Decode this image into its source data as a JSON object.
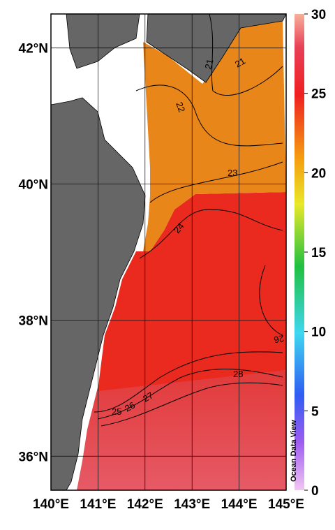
{
  "map": {
    "lonlim": [
      140,
      145
    ],
    "latlim": [
      35.5,
      42.5
    ],
    "lon_ticks": [
      {
        "value": 140,
        "label": "140°E"
      },
      {
        "value": 141,
        "label": "141°E"
      },
      {
        "value": 142,
        "label": "142°E"
      },
      {
        "value": 143,
        "label": "143°E"
      },
      {
        "value": 144,
        "label": "144°E"
      },
      {
        "value": 145,
        "label": "145°E"
      }
    ],
    "lat_ticks": [
      {
        "value": 36,
        "label": "36°N"
      },
      {
        "value": 38,
        "label": "38°N"
      },
      {
        "value": 40,
        "label": "40°N"
      },
      {
        "value": 42,
        "label": "42°N"
      }
    ],
    "colorbar": {
      "lim": [
        0,
        30
      ],
      "ticks": [
        0,
        5,
        10,
        15,
        20,
        25,
        30
      ]
    },
    "contour_labels": [
      21,
      21,
      22,
      23,
      24,
      25,
      26,
      27,
      28,
      26
    ],
    "watermark": "Ocean Data View"
  }
}
